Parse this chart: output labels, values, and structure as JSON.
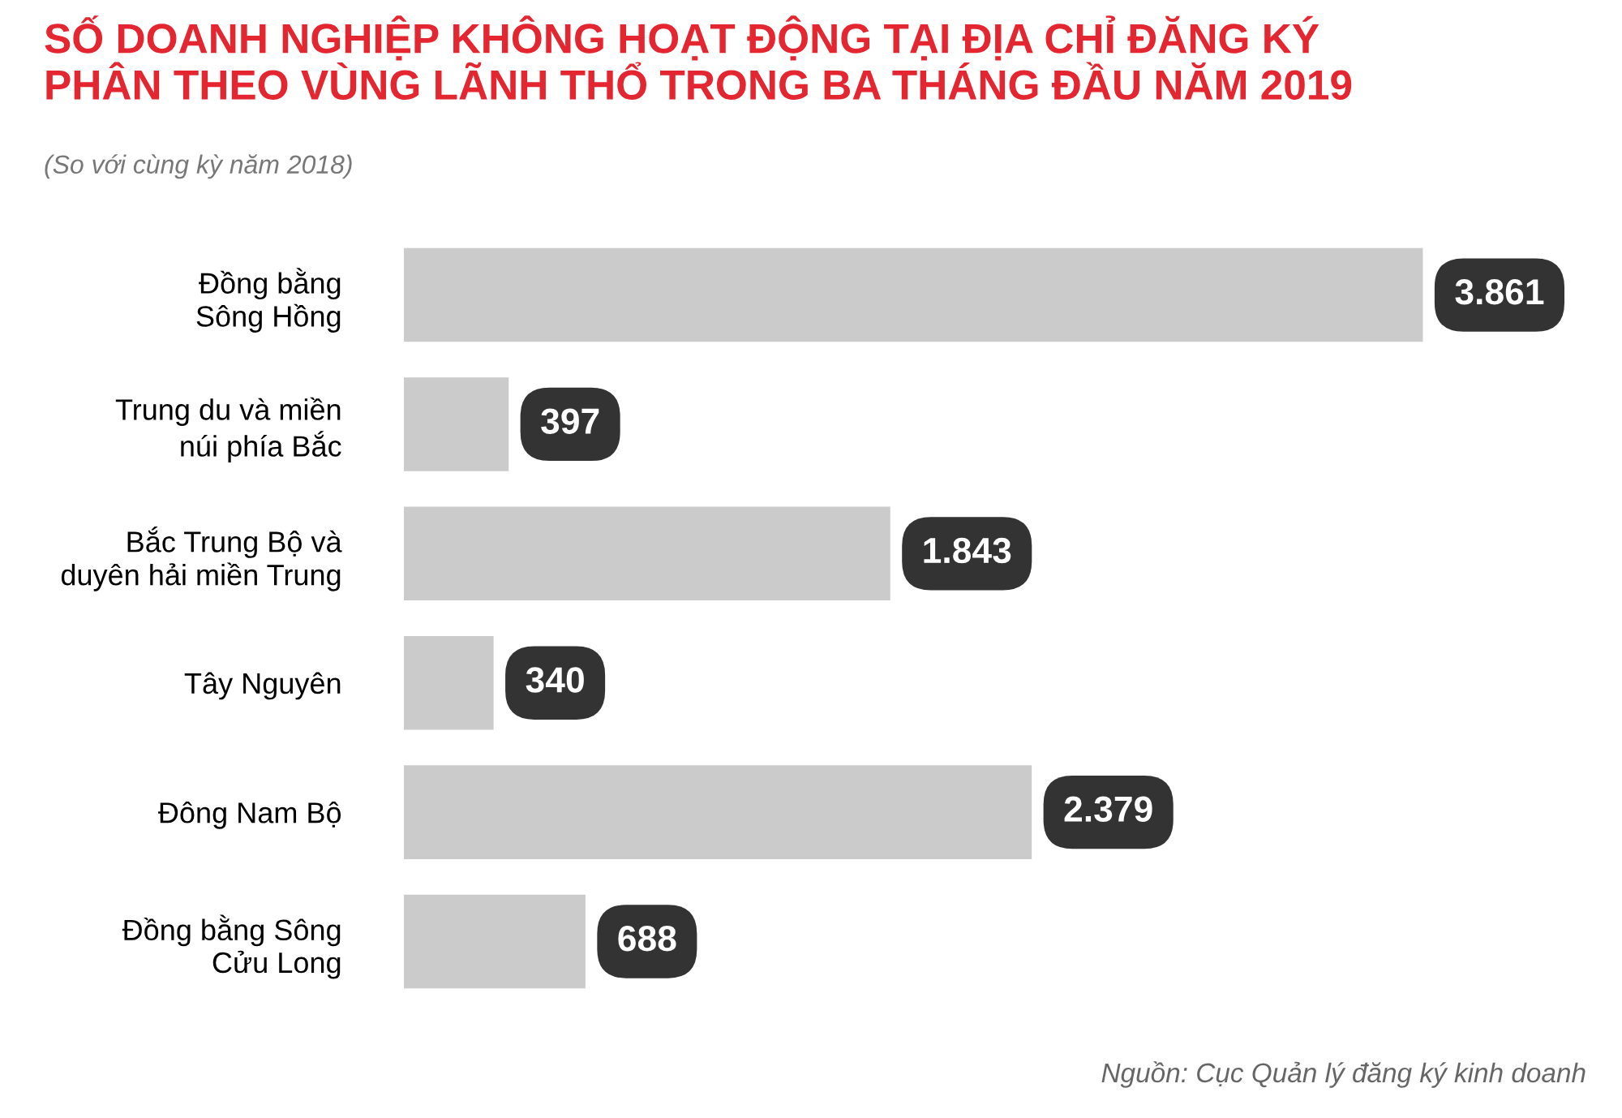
{
  "chart_data": {
    "type": "bar",
    "orientation": "horizontal",
    "title": "SỐ DOANH NGHIỆP KHÔNG HOẠT ĐỘNG TẠI ĐỊA CHỈ ĐĂNG KÝ\nPHÂN THEO VÙNG LÃNH THỔ TRONG BA THÁNG ĐẦU NĂM 2019",
    "subtitle": "(So với cùng kỳ năm 2018)",
    "categories": [
      "Đồng bằng\nSông Hồng",
      "Trung du và miền\nnúi phía Bắc",
      "Bắc Trung Bộ và\nduyên hải miền Trung",
      "Tây Nguyên",
      "Đông Nam Bộ",
      "Đồng bằng Sông\nCửu Long"
    ],
    "values": [
      3861,
      397,
      1843,
      340,
      2379,
      688
    ],
    "value_labels": [
      "3.861",
      "397",
      "1.843",
      "340",
      "2.379",
      "688"
    ],
    "color": "#cccbcb",
    "grid": false,
    "legend": false,
    "annotations": [
      "Nguồn: Cục Quản lý đăng ký kinh doanh"
    ]
  }
}
